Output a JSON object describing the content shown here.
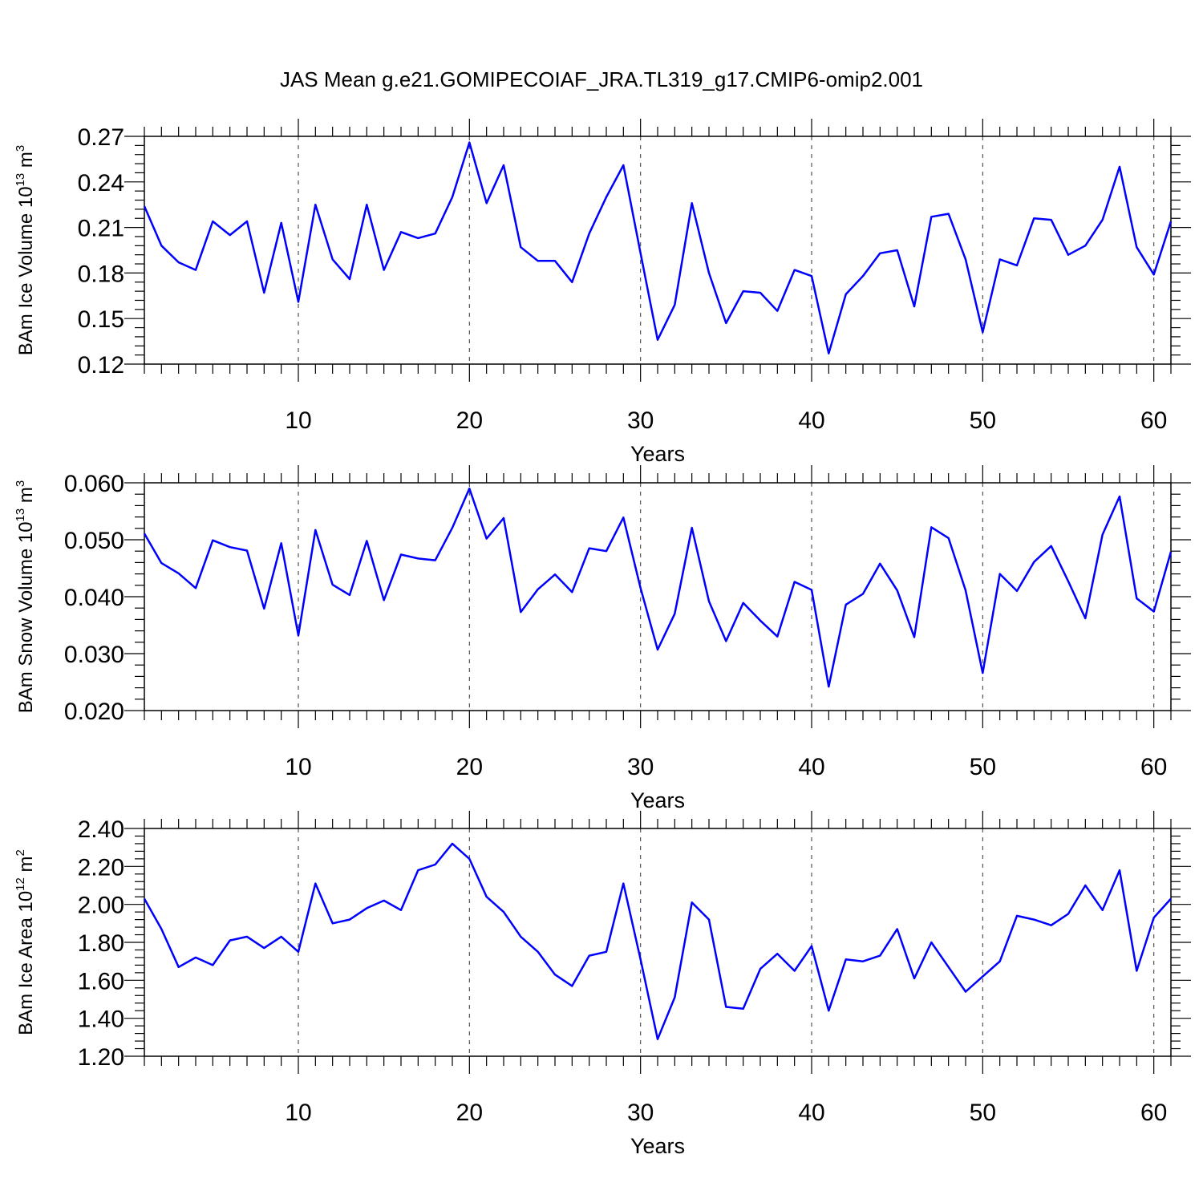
{
  "title": "JAS Mean g.e21.GOMIPECOIAF_JRA.TL319_g17.CMIP6-omip2.001",
  "line_color": "#0000ff",
  "chart_data": [
    {
      "type": "line",
      "ylabel_main": "BAm Ice Volume 10",
      "ylabel_sup1": "13",
      "ylabel_mid": " m",
      "ylabel_sup2": "3",
      "xlabel": "Years",
      "xlim": [
        1,
        61
      ],
      "ylim": [
        0.12,
        0.27
      ],
      "yticks": [
        "0.12",
        "0.15",
        "0.18",
        "0.21",
        "0.24",
        "0.27"
      ],
      "xticks": [
        "10",
        "20",
        "30",
        "40",
        "50",
        "60"
      ],
      "grid_x": true,
      "x": [
        1,
        2,
        3,
        4,
        5,
        6,
        7,
        8,
        9,
        10,
        11,
        12,
        13,
        14,
        15,
        16,
        17,
        18,
        19,
        20,
        21,
        22,
        23,
        24,
        25,
        26,
        27,
        28,
        29,
        30,
        31,
        32,
        33,
        34,
        35,
        36,
        37,
        38,
        39,
        40,
        41,
        42,
        43,
        44,
        45,
        46,
        47,
        48,
        49,
        50,
        51,
        52,
        53,
        54,
        55,
        56,
        57,
        58,
        59,
        60,
        61
      ],
      "values": [
        0.224,
        0.198,
        0.187,
        0.182,
        0.214,
        0.205,
        0.214,
        0.167,
        0.213,
        0.161,
        0.225,
        0.189,
        0.176,
        0.225,
        0.182,
        0.207,
        0.203,
        0.206,
        0.23,
        0.266,
        0.226,
        0.251,
        0.197,
        0.188,
        0.188,
        0.174,
        0.206,
        0.23,
        0.251,
        0.193,
        0.136,
        0.159,
        0.226,
        0.18,
        0.147,
        0.168,
        0.167,
        0.155,
        0.182,
        0.178,
        0.127,
        0.166,
        0.178,
        0.193,
        0.195,
        0.158,
        0.217,
        0.219,
        0.189,
        0.141,
        0.189,
        0.185,
        0.216,
        0.215,
        0.192,
        0.198,
        0.215,
        0.25,
        0.197,
        0.179,
        0.214
      ]
    },
    {
      "type": "line",
      "ylabel_main": "BAm Snow Volume 10",
      "ylabel_sup1": "13",
      "ylabel_mid": " m",
      "ylabel_sup2": "3",
      "xlabel": "Years",
      "xlim": [
        1,
        61
      ],
      "ylim": [
        0.02,
        0.06
      ],
      "yticks": [
        "0.020",
        "0.030",
        "0.040",
        "0.050",
        "0.060"
      ],
      "xticks": [
        "10",
        "20",
        "30",
        "40",
        "50",
        "60"
      ],
      "grid_x": true,
      "x": [
        1,
        2,
        3,
        4,
        5,
        6,
        7,
        8,
        9,
        10,
        11,
        12,
        13,
        14,
        15,
        16,
        17,
        18,
        19,
        20,
        21,
        22,
        23,
        24,
        25,
        26,
        27,
        28,
        29,
        30,
        31,
        32,
        33,
        34,
        35,
        36,
        37,
        38,
        39,
        40,
        41,
        42,
        43,
        44,
        45,
        46,
        47,
        48,
        49,
        50,
        51,
        52,
        53,
        54,
        55,
        56,
        57,
        58,
        59,
        60,
        61
      ],
      "values": [
        0.0511,
        0.0459,
        0.0441,
        0.0415,
        0.0499,
        0.0487,
        0.0481,
        0.0379,
        0.0494,
        0.0332,
        0.0517,
        0.0421,
        0.0403,
        0.0498,
        0.0394,
        0.0474,
        0.0467,
        0.0464,
        0.0521,
        0.059,
        0.0502,
        0.0538,
        0.0373,
        0.0413,
        0.0439,
        0.0408,
        0.0485,
        0.048,
        0.0539,
        0.0415,
        0.0307,
        0.037,
        0.0521,
        0.0392,
        0.0322,
        0.0389,
        0.0358,
        0.033,
        0.0426,
        0.0412,
        0.0242,
        0.0386,
        0.0405,
        0.0458,
        0.0411,
        0.0329,
        0.0522,
        0.0503,
        0.0411,
        0.0266,
        0.044,
        0.041,
        0.0461,
        0.0489,
        0.0427,
        0.0362,
        0.0509,
        0.0576,
        0.0397,
        0.0374,
        0.0479
      ]
    },
    {
      "type": "line",
      "ylabel_main": "BAm Ice Area 10",
      "ylabel_sup1": "12",
      "ylabel_mid": " m",
      "ylabel_sup2": "2",
      "xlabel": "Years",
      "xlim": [
        1,
        61
      ],
      "ylim": [
        1.2,
        2.4
      ],
      "yticks": [
        "1.20",
        "1.40",
        "1.60",
        "1.80",
        "2.00",
        "2.20",
        "2.40"
      ],
      "xticks": [
        "10",
        "20",
        "30",
        "40",
        "50",
        "60"
      ],
      "grid_x": true,
      "x": [
        1,
        2,
        3,
        4,
        5,
        6,
        7,
        8,
        9,
        10,
        11,
        12,
        13,
        14,
        15,
        16,
        17,
        18,
        19,
        20,
        21,
        22,
        23,
        24,
        25,
        26,
        27,
        28,
        29,
        30,
        31,
        32,
        33,
        34,
        35,
        36,
        37,
        38,
        39,
        40,
        41,
        42,
        43,
        44,
        45,
        46,
        47,
        48,
        49,
        50,
        51,
        52,
        53,
        54,
        55,
        56,
        57,
        58,
        59,
        60,
        61
      ],
      "values": [
        2.03,
        1.87,
        1.67,
        1.72,
        1.68,
        1.81,
        1.83,
        1.77,
        1.83,
        1.75,
        2.11,
        1.9,
        1.92,
        1.98,
        2.02,
        1.97,
        2.18,
        2.21,
        2.32,
        2.24,
        2.04,
        1.96,
        1.83,
        1.75,
        1.63,
        1.57,
        1.73,
        1.75,
        2.11,
        1.71,
        1.29,
        1.51,
        2.01,
        1.92,
        1.46,
        1.45,
        1.66,
        1.74,
        1.65,
        1.78,
        1.44,
        1.71,
        1.7,
        1.73,
        1.87,
        1.61,
        1.8,
        1.67,
        1.54,
        1.62,
        1.7,
        1.94,
        1.92,
        1.89,
        1.95,
        2.1,
        1.97,
        2.18,
        1.65,
        1.93,
        2.03
      ]
    }
  ]
}
